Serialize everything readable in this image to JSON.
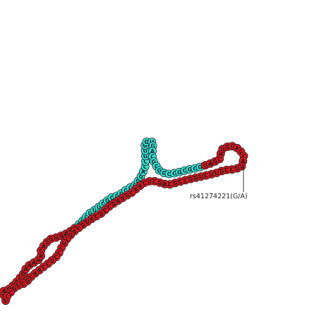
{
  "diagram": {
    "type": "rna-secondary-structure",
    "colors": {
      "background": "#ffffff",
      "red_nucleotide": "#e0141e",
      "cyan_nucleotide": "#33e8dc",
      "outline": "#222222",
      "backbone": "#444444"
    },
    "snp_annotation": {
      "label": "rs41274221(G/A)"
    },
    "nucleotides": [
      {
        "base": "C",
        "color": "red"
      },
      {
        "base": "C",
        "color": "red"
      },
      {
        "base": "A",
        "color": "red"
      },
      {
        "base": "C",
        "color": "red"
      },
      {
        "base": "C",
        "color": "red"
      },
      {
        "base": "C",
        "color": "red"
      },
      {
        "base": "C",
        "color": "red"
      },
      {
        "base": "G",
        "color": "red"
      },
      {
        "base": "A",
        "color": "red"
      },
      {
        "base": "A",
        "color": "red"
      },
      {
        "base": "A",
        "color": "red"
      },
      {
        "base": "A",
        "color": "red"
      },
      {
        "base": "A",
        "color": "red"
      },
      {
        "base": "C",
        "color": "red"
      },
      {
        "base": "A",
        "color": "red"
      },
      {
        "base": "C",
        "color": "red"
      },
      {
        "base": "G",
        "color": "red"
      },
      {
        "base": "U",
        "color": "red"
      },
      {
        "base": "G",
        "color": "red"
      },
      {
        "base": "A",
        "color": "red"
      },
      {
        "base": "G",
        "color": "red"
      },
      {
        "base": "A",
        "color": "red"
      },
      {
        "base": "G",
        "color": "cyan"
      },
      {
        "base": "U",
        "color": "cyan"
      },
      {
        "base": "C",
        "color": "cyan"
      },
      {
        "base": "U",
        "color": "cyan"
      },
      {
        "base": "U",
        "color": "cyan"
      },
      {
        "base": "U",
        "color": "cyan"
      },
      {
        "base": "C",
        "color": "cyan"
      },
      {
        "base": "G",
        "color": "cyan"
      },
      {
        "base": "C",
        "color": "cyan"
      },
      {
        "base": "C",
        "color": "cyan"
      },
      {
        "base": "G",
        "color": "cyan"
      },
      {
        "base": "C",
        "color": "cyan"
      },
      {
        "base": "C",
        "color": "cyan"
      },
      {
        "base": "G",
        "color": "cyan"
      },
      {
        "base": "G",
        "color": "cyan"
      },
      {
        "base": "G",
        "color": "cyan"
      },
      {
        "base": "A",
        "color": "cyan"
      },
      {
        "base": "C",
        "color": "cyan"
      },
      {
        "base": "C",
        "color": "cyan"
      },
      {
        "base": "G",
        "color": "cyan"
      },
      {
        "base": "U",
        "color": "cyan"
      },
      {
        "base": "G",
        "color": "cyan"
      },
      {
        "base": "G",
        "color": "cyan"
      },
      {
        "base": "U",
        "color": "cyan"
      },
      {
        "base": "G",
        "color": "cyan"
      },
      {
        "base": "A",
        "color": "cyan"
      },
      {
        "base": "C",
        "color": "cyan"
      },
      {
        "base": "G",
        "color": "cyan"
      },
      {
        "base": "C",
        "color": "cyan"
      },
      {
        "base": "G",
        "color": "cyan"
      },
      {
        "base": "G",
        "color": "cyan"
      },
      {
        "base": "C",
        "color": "cyan"
      },
      {
        "base": "C",
        "color": "cyan"
      },
      {
        "base": "G",
        "color": "cyan"
      },
      {
        "base": "C",
        "color": "cyan"
      },
      {
        "base": "G",
        "color": "cyan"
      },
      {
        "base": "C",
        "color": "cyan"
      },
      {
        "base": "G",
        "color": "cyan"
      },
      {
        "base": "C",
        "color": "red"
      },
      {
        "base": "A",
        "color": "red"
      },
      {
        "base": "G",
        "color": "red"
      },
      {
        "base": "C",
        "color": "red"
      },
      {
        "base": "A",
        "color": "red"
      },
      {
        "base": "U",
        "color": "red"
      },
      {
        "base": "G",
        "color": "red"
      },
      {
        "base": "C",
        "color": "red"
      },
      {
        "base": "A",
        "color": "red"
      },
      {
        "base": "C",
        "color": "red"
      },
      {
        "base": "C",
        "color": "red"
      },
      {
        "base": "A",
        "color": "red"
      },
      {
        "base": "U",
        "color": "red"
      },
      {
        "base": "G",
        "color": "red"
      },
      {
        "base": "C",
        "color": "red"
      },
      {
        "base": "C",
        "color": "red"
      },
      {
        "base": "G",
        "color": "red"
      },
      {
        "base": "U",
        "color": "red"
      },
      {
        "base": "U",
        "color": "red"
      },
      {
        "base": "C",
        "color": "red"
      },
      {
        "base": "U",
        "color": "red"
      },
      {
        "base": "G",
        "color": "red"
      },
      {
        "base": "G",
        "color": "red"
      },
      {
        "base": "C",
        "color": "red"
      },
      {
        "base": "C",
        "color": "red"
      },
      {
        "base": "G",
        "color": "red"
      },
      {
        "base": "C",
        "color": "red"
      },
      {
        "base": "A",
        "color": "red"
      },
      {
        "base": "G",
        "color": "red"
      },
      {
        "base": "C",
        "color": "red"
      },
      {
        "base": "U",
        "color": "red"
      },
      {
        "base": "C",
        "color": "red"
      },
      {
        "base": "A",
        "color": "red"
      },
      {
        "base": "A",
        "color": "red"
      },
      {
        "base": "C",
        "color": "red"
      },
      {
        "base": "G",
        "color": "red"
      },
      {
        "base": "A",
        "color": "red"
      },
      {
        "base": "A",
        "color": "red"
      },
      {
        "base": "G",
        "color": "red"
      },
      {
        "base": "C",
        "color": "red"
      },
      {
        "base": "C",
        "color": "red"
      },
      {
        "base": "G",
        "color": "red"
      },
      {
        "base": "C",
        "color": "red"
      },
      {
        "base": "A",
        "color": "red"
      },
      {
        "base": "U",
        "color": "red"
      },
      {
        "base": "G",
        "color": "red"
      },
      {
        "base": "C",
        "color": "red"
      },
      {
        "base": "A",
        "color": "red"
      },
      {
        "base": "G",
        "color": "red"
      },
      {
        "base": "C",
        "color": "red"
      },
      {
        "base": "U",
        "color": "red"
      },
      {
        "base": "C",
        "color": "red"
      },
      {
        "base": "C",
        "color": "red"
      },
      {
        "base": "C",
        "color": "red"
      },
      {
        "base": "G",
        "color": "red"
      },
      {
        "base": "C",
        "color": "red"
      },
      {
        "base": "C",
        "color": "red"
      },
      {
        "base": "A",
        "color": "red"
      },
      {
        "base": "A",
        "color": "red"
      },
      {
        "base": "C",
        "color": "red"
      },
      {
        "base": "G",
        "color": "red"
      },
      {
        "base": "C",
        "color": "red"
      },
      {
        "base": "U",
        "color": "red"
      },
      {
        "base": "G",
        "color": "red"
      },
      {
        "base": "C",
        "color": "red"
      },
      {
        "base": "C",
        "color": "red"
      }
    ]
  }
}
